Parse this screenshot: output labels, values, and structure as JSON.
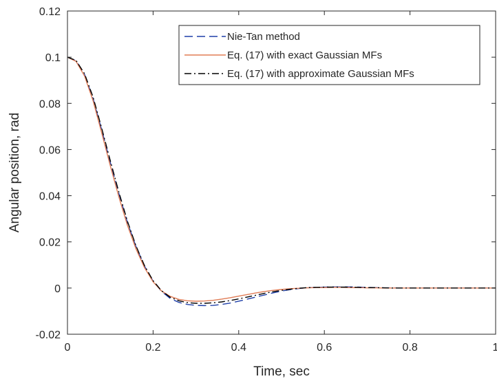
{
  "chart_data": {
    "type": "line",
    "title": "",
    "xlabel": "Time, sec",
    "ylabel": "Angular position, rad",
    "xlim": [
      0,
      1
    ],
    "ylim": [
      -0.02,
      0.12
    ],
    "xticks": [
      0,
      0.2,
      0.4,
      0.6,
      0.8,
      1
    ],
    "xtick_labels": [
      "0",
      "0.2",
      "0.4",
      "0.6",
      "0.8",
      "1"
    ],
    "yticks": [
      -0.02,
      0,
      0.02,
      0.04,
      0.06,
      0.08,
      0.1,
      0.12
    ],
    "ytick_labels": [
      "-0.02",
      "0",
      "0.02",
      "0.04",
      "0.06",
      "0.08",
      "0.1",
      "0.12"
    ],
    "grid": false,
    "box": true,
    "legend_position": "top-right",
    "series": [
      {
        "name": "Nie-Tan method",
        "color": "#1f3fa8",
        "line_style": "dashed",
        "x": [
          0,
          0.02,
          0.04,
          0.06,
          0.08,
          0.1,
          0.12,
          0.14,
          0.16,
          0.18,
          0.2,
          0.22,
          0.24,
          0.26,
          0.28,
          0.3,
          0.32,
          0.34,
          0.36,
          0.38,
          0.4,
          0.42,
          0.44,
          0.46,
          0.48,
          0.5,
          0.52,
          0.54,
          0.56,
          0.58,
          0.6,
          0.62,
          0.64,
          0.66,
          0.68,
          0.7,
          0.72,
          0.74,
          0.76,
          0.78,
          0.8,
          0.85,
          0.9,
          0.95,
          1
        ],
        "y": [
          0.1,
          0.0985,
          0.0925,
          0.082,
          0.0685,
          0.0545,
          0.041,
          0.0285,
          0.018,
          0.0095,
          0.003,
          -0.0015,
          -0.0045,
          -0.0062,
          -0.0071,
          -0.0075,
          -0.0076,
          -0.0075,
          -0.0071,
          -0.0065,
          -0.0057,
          -0.0048,
          -0.0039,
          -0.003,
          -0.0021,
          -0.0013,
          -0.0007,
          -0.0002,
          0.0001,
          0.0003,
          0.0004,
          0.0005,
          0.0005,
          0.0005,
          0.0004,
          0.0003,
          0.0002,
          0.0001,
          0.0001,
          0,
          0,
          0,
          0,
          0,
          0
        ]
      },
      {
        "name": "Eq. (17) with exact Gaussian MFs",
        "color": "#e07b54",
        "line_style": "solid",
        "x": [
          0,
          0.02,
          0.04,
          0.06,
          0.08,
          0.1,
          0.12,
          0.14,
          0.16,
          0.18,
          0.2,
          0.22,
          0.24,
          0.26,
          0.28,
          0.3,
          0.32,
          0.34,
          0.36,
          0.38,
          0.4,
          0.42,
          0.44,
          0.46,
          0.48,
          0.5,
          0.52,
          0.54,
          0.56,
          0.58,
          0.6,
          0.62,
          0.64,
          0.66,
          0.68,
          0.7,
          0.72,
          0.74,
          0.76,
          0.78,
          0.8,
          0.85,
          0.9,
          0.95,
          1
        ],
        "y": [
          0.1,
          0.0982,
          0.0918,
          0.081,
          0.0672,
          0.053,
          0.0395,
          0.0272,
          0.017,
          0.0088,
          0.0027,
          -0.0013,
          -0.0036,
          -0.0049,
          -0.0055,
          -0.0057,
          -0.0056,
          -0.0053,
          -0.0048,
          -0.0042,
          -0.0035,
          -0.0028,
          -0.0021,
          -0.0015,
          -0.001,
          -0.0006,
          -0.0003,
          -0.0001,
          0.0001,
          0.0002,
          0.0002,
          0.0003,
          0.0003,
          0.0002,
          0.0002,
          0.0001,
          0.0001,
          0,
          0,
          0,
          0,
          0,
          0,
          0,
          0
        ]
      },
      {
        "name": "Eq. (17) with approximate Gaussian MFs",
        "color": "#000000",
        "line_style": "dash-dot",
        "x": [
          0,
          0.02,
          0.04,
          0.06,
          0.08,
          0.1,
          0.12,
          0.14,
          0.16,
          0.18,
          0.2,
          0.22,
          0.24,
          0.26,
          0.28,
          0.3,
          0.32,
          0.34,
          0.36,
          0.38,
          0.4,
          0.42,
          0.44,
          0.46,
          0.48,
          0.5,
          0.52,
          0.54,
          0.56,
          0.58,
          0.6,
          0.62,
          0.64,
          0.66,
          0.68,
          0.7,
          0.72,
          0.74,
          0.76,
          0.78,
          0.8,
          0.85,
          0.9,
          0.95,
          1
        ],
        "y": [
          0.1,
          0.0986,
          0.0928,
          0.0826,
          0.0692,
          0.0552,
          0.0416,
          0.029,
          0.0183,
          0.0097,
          0.0032,
          -0.0012,
          -0.004,
          -0.0055,
          -0.0063,
          -0.0066,
          -0.0066,
          -0.0064,
          -0.006,
          -0.0054,
          -0.0047,
          -0.0039,
          -0.0031,
          -0.0023,
          -0.0016,
          -0.001,
          -0.0005,
          -0.0001,
          0.0002,
          0.0003,
          0.0004,
          0.0004,
          0.0004,
          0.0004,
          0.0003,
          0.0002,
          0.0002,
          0.0001,
          0,
          0,
          0,
          0,
          0,
          0,
          0
        ]
      }
    ]
  }
}
